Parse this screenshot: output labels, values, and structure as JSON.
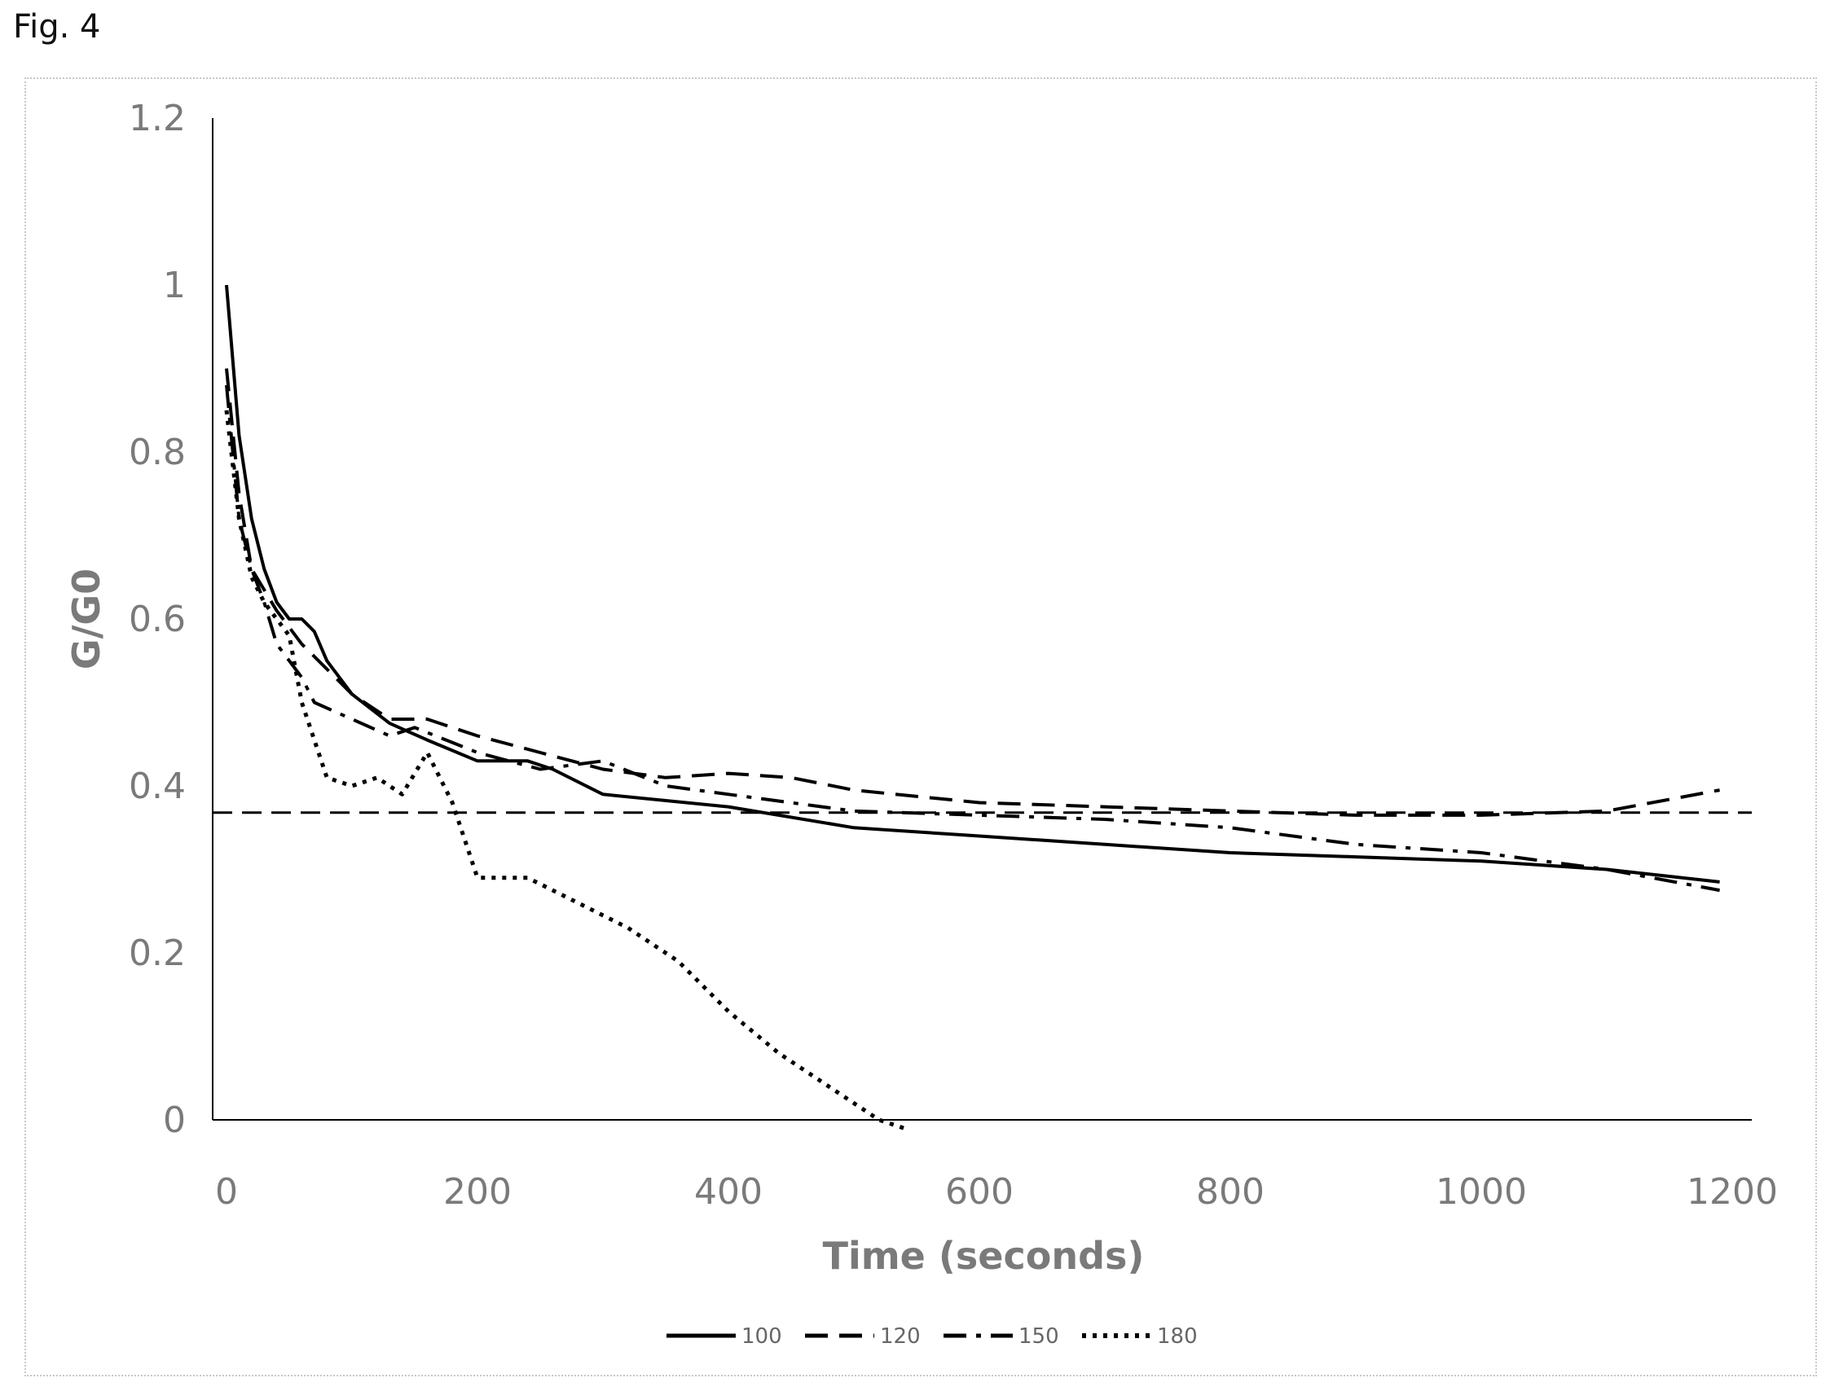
{
  "figure_label": "Fig. 4",
  "chart_data": {
    "type": "line",
    "title": "",
    "xlabel": "Time (seconds)",
    "ylabel": "G/G0",
    "xlim": [
      0,
      1200
    ],
    "ylim": [
      0,
      1.2
    ],
    "x_ticks": [
      "0",
      "200",
      "400",
      "600",
      "800",
      "1000",
      "1200"
    ],
    "y_ticks": [
      "0",
      "0.2",
      "0.4",
      "0.6",
      "0.8",
      "1",
      "1.2"
    ],
    "grid": false,
    "legend_position": "bottom",
    "reference_line": {
      "y": 0.368,
      "style": "dashed"
    },
    "series": [
      {
        "name": "100",
        "style": "solid",
        "x": [
          0,
          10,
          20,
          30,
          40,
          50,
          60,
          70,
          80,
          100,
          130,
          160,
          200,
          240,
          260,
          300,
          400,
          500,
          600,
          700,
          800,
          900,
          1000,
          1100,
          1190
        ],
        "y": [
          1.0,
          0.82,
          0.72,
          0.66,
          0.62,
          0.6,
          0.6,
          0.585,
          0.55,
          0.51,
          0.475,
          0.455,
          0.43,
          0.43,
          0.42,
          0.39,
          0.375,
          0.35,
          0.34,
          0.33,
          0.32,
          0.315,
          0.31,
          0.3,
          0.285
        ]
      },
      {
        "name": "120",
        "style": "dashed",
        "x": [
          0,
          10,
          20,
          40,
          60,
          80,
          100,
          130,
          160,
          200,
          250,
          300,
          350,
          400,
          450,
          500,
          600,
          700,
          800,
          900,
          1000,
          1100,
          1190
        ],
        "y": [
          0.9,
          0.75,
          0.66,
          0.61,
          0.57,
          0.54,
          0.51,
          0.48,
          0.48,
          0.46,
          0.44,
          0.42,
          0.41,
          0.415,
          0.41,
          0.395,
          0.38,
          0.375,
          0.37,
          0.365,
          0.365,
          0.37,
          0.395
        ]
      },
      {
        "name": "150",
        "style": "dash-dot",
        "x": [
          0,
          10,
          20,
          30,
          40,
          50,
          60,
          70,
          100,
          130,
          150,
          200,
          250,
          300,
          350,
          400,
          500,
          600,
          700,
          800,
          900,
          1000,
          1100,
          1190
        ],
        "y": [
          0.88,
          0.72,
          0.66,
          0.62,
          0.57,
          0.55,
          0.53,
          0.5,
          0.48,
          0.46,
          0.47,
          0.44,
          0.42,
          0.43,
          0.4,
          0.39,
          0.37,
          0.365,
          0.36,
          0.35,
          0.33,
          0.32,
          0.3,
          0.275
        ]
      },
      {
        "name": "180",
        "style": "dotted",
        "x": [
          0,
          10,
          20,
          30,
          40,
          50,
          60,
          80,
          100,
          120,
          140,
          160,
          180,
          200,
          240,
          280,
          320,
          360,
          400,
          440,
          480,
          520,
          540
        ],
        "y": [
          0.85,
          0.72,
          0.65,
          0.62,
          0.6,
          0.58,
          0.5,
          0.41,
          0.4,
          0.41,
          0.39,
          0.44,
          0.38,
          0.29,
          0.29,
          0.26,
          0.23,
          0.19,
          0.13,
          0.08,
          0.04,
          0.0,
          -0.01
        ]
      }
    ]
  }
}
